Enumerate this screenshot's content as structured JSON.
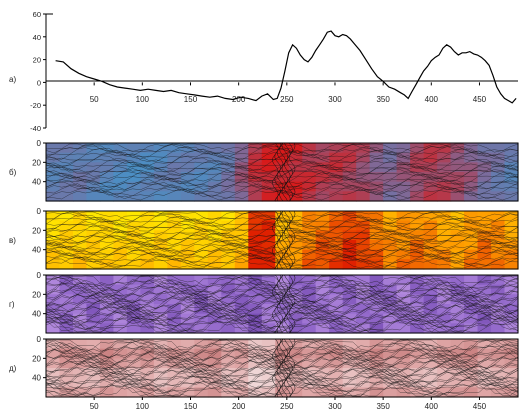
{
  "chart_data": [
    {
      "type": "line",
      "panel_label": "а)",
      "x": [
        10,
        18,
        26,
        34,
        42,
        50,
        58,
        66,
        74,
        82,
        90,
        98,
        106,
        114,
        122,
        130,
        138,
        146,
        154,
        162,
        170,
        178,
        186,
        194,
        202,
        210,
        218,
        224,
        230,
        236,
        240,
        244,
        248,
        252,
        256,
        260,
        264,
        268,
        272,
        276,
        280,
        284,
        288,
        292,
        296,
        300,
        304,
        308,
        312,
        316,
        320,
        326,
        332,
        338,
        344,
        350,
        356,
        362,
        368,
        372,
        376,
        380,
        384,
        388,
        392,
        396,
        400,
        404,
        408,
        412,
        416,
        420,
        424,
        428,
        432,
        436,
        440,
        444,
        448,
        452,
        456,
        460,
        464,
        468,
        472,
        476,
        480,
        484,
        488
      ],
      "y": [
        19,
        18,
        12,
        8,
        5,
        3,
        1,
        -2,
        -4,
        -5,
        -6,
        -7,
        -6,
        -7,
        -8,
        -7,
        -9,
        -10,
        -11,
        -12,
        -13,
        -12,
        -14,
        -15,
        -13,
        -14,
        -16,
        -12,
        -10,
        -15,
        -14,
        -5,
        10,
        26,
        33,
        30,
        24,
        20,
        18,
        22,
        28,
        33,
        38,
        44,
        45,
        41,
        40,
        42,
        41,
        38,
        34,
        28,
        20,
        12,
        5,
        1,
        -4,
        -6,
        -9,
        -11,
        -14,
        -8,
        -2,
        4,
        10,
        14,
        19,
        22,
        24,
        30,
        33,
        31,
        27,
        24,
        26,
        26,
        27,
        25,
        24,
        22,
        19,
        15,
        6,
        -4,
        -10,
        -14,
        -16,
        -18,
        -14
      ],
      "xlim": [
        0,
        490
      ],
      "ylim": [
        -40,
        60
      ],
      "yticks": [
        -40,
        -20,
        0,
        20,
        40,
        60
      ],
      "xticks": [
        50,
        100,
        150,
        200,
        250,
        300,
        350,
        400,
        450
      ],
      "color": "#000000",
      "zero_line": true
    },
    {
      "type": "heatmap",
      "panel_label": "б)",
      "ylim": [
        0,
        60
      ],
      "yticks": [
        0,
        20,
        40
      ],
      "colors": {
        "low": "#3a9ad1",
        "mid": "#7a6d9e",
        "high": "#d81a1a"
      },
      "row_profile": [
        0.3,
        0.32,
        0.35,
        0.3,
        0.25,
        0.22,
        0.2,
        0.22,
        0.25,
        0.3,
        0.28,
        0.27,
        0.3,
        0.4,
        0.6,
        0.85,
        0.95,
        0.98,
        0.92,
        0.85,
        0.8,
        0.82,
        0.78,
        0.7,
        0.6,
        0.52,
        0.6,
        0.72,
        0.78,
        0.75,
        0.68,
        0.6,
        0.48,
        0.4,
        0.3
      ]
    },
    {
      "type": "heatmap",
      "panel_label": "в)",
      "ylim": [
        0,
        60
      ],
      "yticks": [
        0,
        20,
        40
      ],
      "colors": {
        "low": "#ffe800",
        "mid": "#ffa000",
        "high": "#e02000"
      },
      "row_profile": [
        0.05,
        0.06,
        0.08,
        0.06,
        0.05,
        0.04,
        0.05,
        0.05,
        0.06,
        0.08,
        0.07,
        0.06,
        0.07,
        0.1,
        0.2,
        0.95,
        0.9,
        0.3,
        0.4,
        0.55,
        0.65,
        0.7,
        0.85,
        0.75,
        0.6,
        0.45,
        0.5,
        0.55,
        0.5,
        0.4,
        0.35,
        0.45,
        0.55,
        0.5,
        0.4
      ]
    },
    {
      "type": "heatmap",
      "panel_label": "г)",
      "ylim": [
        0,
        60
      ],
      "yticks": [
        0,
        20,
        40
      ],
      "colors": {
        "low": "#c8a0e8",
        "mid": "#9a70d0",
        "high": "#6a40a8"
      },
      "row_profile": [
        0.4,
        0.55,
        0.45,
        0.6,
        0.5,
        0.45,
        0.6,
        0.5,
        0.4,
        0.55,
        0.45,
        0.6,
        0.5,
        0.55,
        0.6,
        0.7,
        0.5,
        0.4,
        0.55,
        0.6,
        0.45,
        0.5,
        0.55,
        0.45,
        0.6,
        0.5,
        0.4,
        0.55,
        0.6,
        0.45,
        0.5,
        0.55,
        0.6,
        0.5,
        0.45
      ]
    },
    {
      "type": "heatmap",
      "panel_label": "д)",
      "ylim": [
        0,
        60
      ],
      "yticks": [
        0,
        20,
        40
      ],
      "colors": {
        "low": "#f2dede",
        "mid": "#e0a8a8",
        "high": "#b86060"
      },
      "row_profile": [
        0.4,
        0.55,
        0.5,
        0.45,
        0.6,
        0.5,
        0.45,
        0.55,
        0.4,
        0.5,
        0.45,
        0.55,
        0.6,
        0.4,
        0.45,
        0.2,
        0.25,
        0.6,
        0.55,
        0.45,
        0.5,
        0.55,
        0.4,
        0.45,
        0.6,
        0.5,
        0.55,
        0.45,
        0.4,
        0.5,
        0.55,
        0.6,
        0.45,
        0.5,
        0.55
      ]
    }
  ],
  "bottom_axis": {
    "ticks": [
      50,
      100,
      150,
      200,
      250,
      300,
      350,
      400,
      450
    ],
    "xlim": [
      0,
      490
    ]
  }
}
